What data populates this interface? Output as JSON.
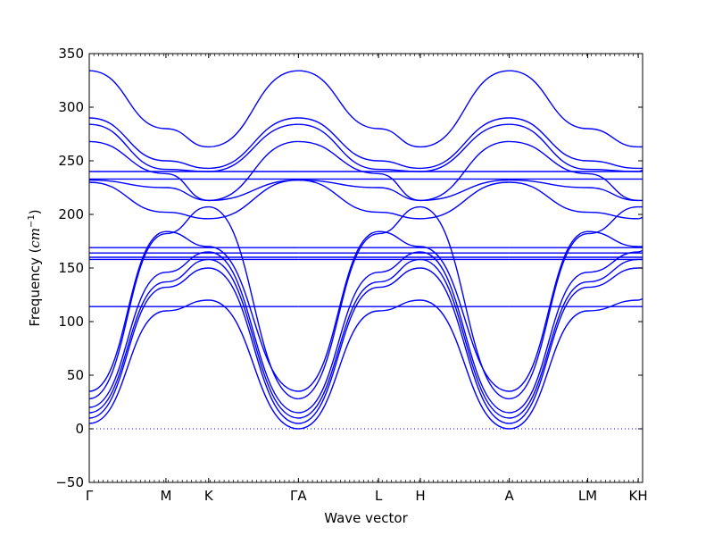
{
  "chart_data": {
    "type": "line",
    "title": "",
    "xlabel": "Wave vector",
    "ylabel": "Frequency",
    "ylabel_unit": "cm",
    "ylabel_unit_exp": "−1",
    "ylim": [
      -50,
      350
    ],
    "yticks": [
      -50,
      0,
      50,
      100,
      150,
      200,
      250,
      300,
      350
    ],
    "xlim": [
      0,
      6.35
    ],
    "special_points": [
      {
        "label": "Γ",
        "x": 0
      },
      {
        "label": "M",
        "x": 0.88
      },
      {
        "label": "K",
        "x": 1.37
      },
      {
        "label": "ΓA",
        "x": 2.4
      },
      {
        "label": "L",
        "x": 3.32
      },
      {
        "label": "H",
        "x": 3.8
      },
      {
        "label": "A",
        "x": 4.82
      },
      {
        "label": "LM",
        "x": 5.72
      },
      {
        "label": "KH",
        "x": 6.3
      }
    ],
    "zero_line": {
      "y": 0,
      "style": "dotted"
    },
    "series": [
      {
        "points": [
          [
            0,
            5
          ],
          [
            0.88,
            110
          ],
          [
            1.37,
            120
          ],
          [
            2.4,
            0
          ]
        ]
      },
      {
        "points": [
          [
            0,
            10
          ],
          [
            0.88,
            132
          ],
          [
            1.37,
            150
          ],
          [
            2.4,
            5
          ]
        ]
      },
      {
        "points": [
          [
            0,
            15
          ],
          [
            0.88,
            137
          ],
          [
            1.37,
            158
          ],
          [
            2.4,
            10
          ]
        ]
      },
      {
        "points": [
          [
            0,
            20
          ],
          [
            0.88,
            146
          ],
          [
            1.37,
            165
          ],
          [
            2.4,
            15
          ]
        ]
      },
      {
        "points": [
          [
            0,
            28
          ],
          [
            0.88,
            182
          ],
          [
            1.37,
            207
          ],
          [
            2.4,
            28
          ]
        ]
      },
      {
        "points": [
          [
            0,
            35
          ],
          [
            0.88,
            184
          ],
          [
            1.37,
            170
          ],
          [
            2.4,
            35
          ]
        ]
      },
      {
        "points": [
          [
            0,
            230
          ],
          [
            0.88,
            202
          ],
          [
            1.37,
            196
          ],
          [
            2.4,
            232
          ]
        ]
      },
      {
        "points": [
          [
            0,
            232
          ],
          [
            0.88,
            225
          ],
          [
            1.37,
            213
          ],
          [
            2.4,
            232
          ]
        ]
      },
      {
        "points": [
          [
            0,
            268
          ],
          [
            0.88,
            238
          ],
          [
            1.37,
            213
          ],
          [
            2.4,
            268
          ]
        ]
      },
      {
        "points": [
          [
            0,
            284
          ],
          [
            0.88,
            242
          ],
          [
            1.37,
            240
          ],
          [
            2.4,
            284
          ]
        ]
      },
      {
        "points": [
          [
            0,
            290
          ],
          [
            0.88,
            250
          ],
          [
            1.37,
            243
          ],
          [
            2.4,
            290
          ]
        ]
      },
      {
        "points": [
          [
            0,
            334
          ],
          [
            0.88,
            280
          ],
          [
            1.37,
            263
          ],
          [
            2.4,
            334
          ]
        ]
      },
      {
        "points": [
          [
            0,
            114
          ],
          [
            2.4,
            114
          ]
        ]
      },
      {
        "points": [
          [
            0,
            158
          ],
          [
            2.4,
            158
          ]
        ]
      },
      {
        "points": [
          [
            0,
            160
          ],
          [
            2.4,
            160
          ]
        ]
      },
      {
        "points": [
          [
            0,
            164
          ],
          [
            2.4,
            164
          ]
        ]
      },
      {
        "points": [
          [
            0,
            169
          ],
          [
            2.4,
            169
          ]
        ]
      },
      {
        "points": [
          [
            0,
            233
          ],
          [
            2.4,
            233
          ]
        ]
      },
      {
        "points": [
          [
            0,
            240
          ],
          [
            2.4,
            240
          ]
        ]
      },
      {
        "points": [
          [
            2.4,
            0
          ],
          [
            3.32,
            110
          ],
          [
            3.8,
            120
          ],
          [
            4.82,
            0
          ]
        ]
      },
      {
        "points": [
          [
            2.4,
            5
          ],
          [
            3.32,
            132
          ],
          [
            3.8,
            150
          ],
          [
            4.82,
            5
          ]
        ]
      },
      {
        "points": [
          [
            2.4,
            10
          ],
          [
            3.32,
            137
          ],
          [
            3.8,
            158
          ],
          [
            4.82,
            10
          ]
        ]
      },
      {
        "points": [
          [
            2.4,
            15
          ],
          [
            3.32,
            146
          ],
          [
            3.8,
            165
          ],
          [
            4.82,
            15
          ]
        ]
      },
      {
        "points": [
          [
            2.4,
            28
          ],
          [
            3.32,
            182
          ],
          [
            3.8,
            207
          ],
          [
            4.82,
            28
          ]
        ]
      },
      {
        "points": [
          [
            2.4,
            35
          ],
          [
            3.32,
            184
          ],
          [
            3.8,
            170
          ],
          [
            4.82,
            35
          ]
        ]
      },
      {
        "points": [
          [
            2.4,
            232
          ],
          [
            3.32,
            202
          ],
          [
            3.8,
            196
          ],
          [
            4.82,
            230
          ]
        ]
      },
      {
        "points": [
          [
            2.4,
            232
          ],
          [
            3.32,
            225
          ],
          [
            3.8,
            213
          ],
          [
            4.82,
            232
          ]
        ]
      },
      {
        "points": [
          [
            2.4,
            268
          ],
          [
            3.32,
            238
          ],
          [
            3.8,
            213
          ],
          [
            4.82,
            268
          ]
        ]
      },
      {
        "points": [
          [
            2.4,
            284
          ],
          [
            3.32,
            242
          ],
          [
            3.8,
            240
          ],
          [
            4.82,
            284
          ]
        ]
      },
      {
        "points": [
          [
            2.4,
            290
          ],
          [
            3.32,
            250
          ],
          [
            3.8,
            243
          ],
          [
            4.82,
            290
          ]
        ]
      },
      {
        "points": [
          [
            2.4,
            334
          ],
          [
            3.32,
            280
          ],
          [
            3.8,
            263
          ],
          [
            4.82,
            334
          ]
        ]
      },
      {
        "points": [
          [
            2.4,
            114
          ],
          [
            4.82,
            114
          ]
        ]
      },
      {
        "points": [
          [
            2.4,
            158
          ],
          [
            4.82,
            158
          ]
        ]
      },
      {
        "points": [
          [
            2.4,
            160
          ],
          [
            4.82,
            160
          ]
        ]
      },
      {
        "points": [
          [
            2.4,
            164
          ],
          [
            4.82,
            164
          ]
        ]
      },
      {
        "points": [
          [
            2.4,
            169
          ],
          [
            4.82,
            169
          ]
        ]
      },
      {
        "points": [
          [
            2.4,
            233
          ],
          [
            4.82,
            233
          ]
        ]
      },
      {
        "points": [
          [
            2.4,
            240
          ],
          [
            4.82,
            240
          ]
        ]
      },
      {
        "points": [
          [
            4.82,
            0
          ],
          [
            5.72,
            110
          ],
          [
            6.3,
            120
          ]
        ]
      },
      {
        "points": [
          [
            4.82,
            5
          ],
          [
            5.72,
            132
          ],
          [
            6.3,
            150
          ]
        ]
      },
      {
        "points": [
          [
            4.82,
            10
          ],
          [
            5.72,
            137
          ],
          [
            6.3,
            158
          ]
        ]
      },
      {
        "points": [
          [
            4.82,
            15
          ],
          [
            5.72,
            146
          ],
          [
            6.3,
            165
          ]
        ]
      },
      {
        "points": [
          [
            4.82,
            28
          ],
          [
            5.72,
            182
          ],
          [
            6.3,
            207
          ]
        ]
      },
      {
        "points": [
          [
            4.82,
            35
          ],
          [
            5.72,
            184
          ],
          [
            6.3,
            170
          ]
        ]
      },
      {
        "points": [
          [
            4.82,
            230
          ],
          [
            5.72,
            202
          ],
          [
            6.3,
            196
          ]
        ]
      },
      {
        "points": [
          [
            4.82,
            232
          ],
          [
            5.72,
            225
          ],
          [
            6.3,
            213
          ]
        ]
      },
      {
        "points": [
          [
            4.82,
            268
          ],
          [
            5.72,
            238
          ],
          [
            6.3,
            213
          ]
        ]
      },
      {
        "points": [
          [
            4.82,
            284
          ],
          [
            5.72,
            242
          ],
          [
            6.3,
            240
          ]
        ]
      },
      {
        "points": [
          [
            4.82,
            290
          ],
          [
            5.72,
            250
          ],
          [
            6.3,
            243
          ]
        ]
      },
      {
        "points": [
          [
            4.82,
            334
          ],
          [
            5.72,
            280
          ],
          [
            6.3,
            263
          ]
        ]
      },
      {
        "points": [
          [
            4.82,
            114
          ],
          [
            6.35,
            114
          ]
        ]
      },
      {
        "points": [
          [
            4.82,
            158
          ],
          [
            6.35,
            158
          ]
        ]
      },
      {
        "points": [
          [
            4.82,
            160
          ],
          [
            6.35,
            160
          ]
        ]
      },
      {
        "points": [
          [
            4.82,
            164
          ],
          [
            6.35,
            164
          ]
        ]
      },
      {
        "points": [
          [
            4.82,
            169
          ],
          [
            6.35,
            169
          ]
        ]
      },
      {
        "points": [
          [
            4.82,
            233
          ],
          [
            6.35,
            233
          ]
        ]
      },
      {
        "points": [
          [
            4.82,
            240
          ],
          [
            6.35,
            240
          ]
        ]
      },
      {
        "points": [
          [
            6.3,
            120
          ],
          [
            6.35,
            121
          ]
        ]
      },
      {
        "points": [
          [
            6.3,
            150
          ],
          [
            6.35,
            150
          ]
        ]
      },
      {
        "points": [
          [
            6.3,
            158
          ],
          [
            6.35,
            158
          ]
        ]
      },
      {
        "points": [
          [
            6.3,
            165
          ],
          [
            6.35,
            166
          ]
        ]
      },
      {
        "points": [
          [
            6.3,
            207
          ],
          [
            6.35,
            207
          ]
        ]
      },
      {
        "points": [
          [
            6.3,
            170
          ],
          [
            6.35,
            170
          ]
        ]
      },
      {
        "points": [
          [
            6.3,
            196
          ],
          [
            6.35,
            197
          ]
        ]
      },
      {
        "points": [
          [
            6.3,
            213
          ],
          [
            6.35,
            213
          ]
        ]
      },
      {
        "points": [
          [
            6.3,
            240
          ],
          [
            6.35,
            241
          ]
        ]
      },
      {
        "points": [
          [
            6.3,
            243
          ],
          [
            6.35,
            243
          ]
        ]
      },
      {
        "points": [
          [
            6.3,
            263
          ],
          [
            6.35,
            263
          ]
        ]
      }
    ],
    "line_color": "#0000ff",
    "zero_line_color": "#0000ff"
  }
}
